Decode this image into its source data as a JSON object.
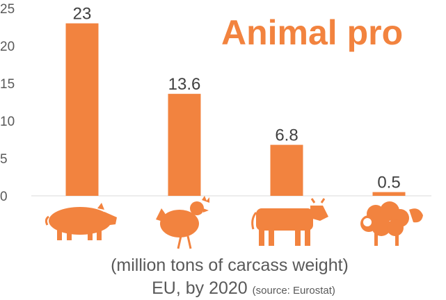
{
  "chart_data": {
    "type": "bar",
    "title": "Animal pro",
    "categories": [
      "pig",
      "chicken",
      "cow",
      "sheep"
    ],
    "values": [
      23,
      13.6,
      6.8,
      0.5
    ],
    "data_labels": [
      "23",
      "13.6",
      "6.8",
      "0.5"
    ],
    "ylim": [
      0,
      25
    ],
    "yticks": [
      "0",
      "5",
      "10",
      "15",
      "20",
      "25"
    ],
    "grid": false,
    "legend": "none",
    "bar_color": "#f2833f"
  },
  "caption": {
    "units": "(million tons of carcass weight)",
    "scope": "EU, by 2020",
    "source": "(source: Eurostat)"
  },
  "icons": [
    "pig-icon",
    "chicken-icon",
    "cow-icon",
    "sheep-icon"
  ]
}
